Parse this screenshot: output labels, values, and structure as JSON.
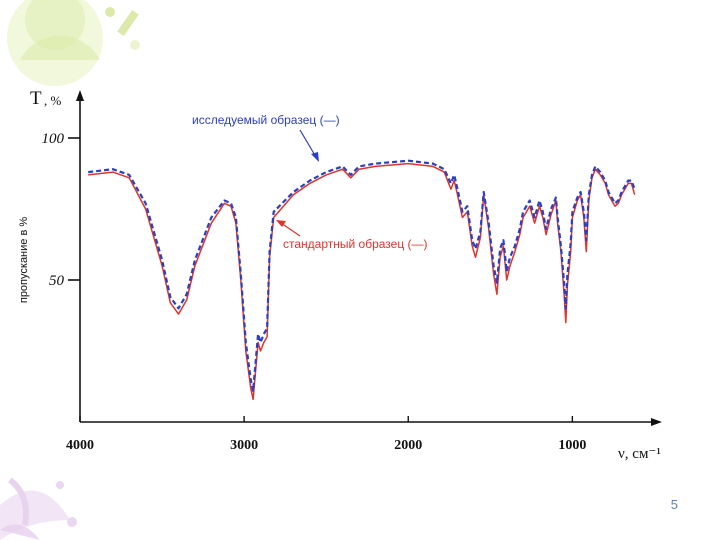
{
  "page_number": "5",
  "chart_data": {
    "type": "line",
    "ylabel_symbol": "T",
    "ylabel_unit": ", %",
    "ylabel_rotated": "пропускание в %",
    "xlabel": "ν, см⁻¹",
    "xlim": [
      4000,
      600
    ],
    "ylim": [
      0,
      110
    ],
    "x_ticks": [
      4000,
      3000,
      2000,
      1000
    ],
    "y_ticks": [
      100,
      50
    ],
    "grid": false,
    "series": [
      {
        "name": "стандартный образец (—)",
        "color": "#e0332b",
        "style": "solid",
        "points": [
          [
            3950,
            87
          ],
          [
            3800,
            88
          ],
          [
            3700,
            86
          ],
          [
            3600,
            75
          ],
          [
            3500,
            55
          ],
          [
            3450,
            42
          ],
          [
            3400,
            38
          ],
          [
            3350,
            43
          ],
          [
            3300,
            55
          ],
          [
            3200,
            70
          ],
          [
            3120,
            77
          ],
          [
            3080,
            76
          ],
          [
            3050,
            70
          ],
          [
            3020,
            50
          ],
          [
            2990,
            25
          ],
          [
            2960,
            12
          ],
          [
            2945,
            8
          ],
          [
            2930,
            18
          ],
          [
            2915,
            28
          ],
          [
            2900,
            25
          ],
          [
            2880,
            28
          ],
          [
            2860,
            30
          ],
          [
            2845,
            58
          ],
          [
            2820,
            72
          ],
          [
            2700,
            80
          ],
          [
            2600,
            84
          ],
          [
            2500,
            87
          ],
          [
            2400,
            89
          ],
          [
            2350,
            86
          ],
          [
            2300,
            89
          ],
          [
            2200,
            90
          ],
          [
            2000,
            91
          ],
          [
            1850,
            90
          ],
          [
            1780,
            88
          ],
          [
            1740,
            82
          ],
          [
            1720,
            85
          ],
          [
            1700,
            80
          ],
          [
            1670,
            72
          ],
          [
            1640,
            74
          ],
          [
            1610,
            62
          ],
          [
            1590,
            58
          ],
          [
            1560,
            65
          ],
          [
            1540,
            80
          ],
          [
            1510,
            68
          ],
          [
            1480,
            52
          ],
          [
            1460,
            45
          ],
          [
            1440,
            58
          ],
          [
            1420,
            62
          ],
          [
            1400,
            50
          ],
          [
            1380,
            55
          ],
          [
            1350,
            60
          ],
          [
            1320,
            66
          ],
          [
            1300,
            72
          ],
          [
            1260,
            76
          ],
          [
            1230,
            70
          ],
          [
            1200,
            76
          ],
          [
            1180,
            72
          ],
          [
            1160,
            66
          ],
          [
            1130,
            73
          ],
          [
            1100,
            78
          ],
          [
            1090,
            70
          ],
          [
            1070,
            60
          ],
          [
            1050,
            45
          ],
          [
            1040,
            35
          ],
          [
            1030,
            48
          ],
          [
            1010,
            60
          ],
          [
            1000,
            72
          ],
          [
            970,
            78
          ],
          [
            950,
            80
          ],
          [
            930,
            72
          ],
          [
            915,
            60
          ],
          [
            900,
            78
          ],
          [
            880,
            86
          ],
          [
            860,
            89
          ],
          [
            830,
            87
          ],
          [
            800,
            84
          ],
          [
            780,
            80
          ],
          [
            760,
            78
          ],
          [
            740,
            76
          ],
          [
            720,
            77
          ],
          [
            700,
            80
          ],
          [
            680,
            82
          ],
          [
            660,
            84
          ],
          [
            640,
            84
          ],
          [
            620,
            80
          ]
        ]
      },
      {
        "name": "исследуемый образец (—)",
        "color": "#2b3fc2",
        "style": "dashed",
        "points": [
          [
            3950,
            88
          ],
          [
            3800,
            89
          ],
          [
            3700,
            87
          ],
          [
            3600,
            77
          ],
          [
            3500,
            57
          ],
          [
            3450,
            44
          ],
          [
            3400,
            40
          ],
          [
            3350,
            45
          ],
          [
            3300,
            57
          ],
          [
            3200,
            72
          ],
          [
            3120,
            78
          ],
          [
            3080,
            77
          ],
          [
            3050,
            72
          ],
          [
            3020,
            52
          ],
          [
            2990,
            28
          ],
          [
            2960,
            15
          ],
          [
            2945,
            11
          ],
          [
            2930,
            21
          ],
          [
            2915,
            31
          ],
          [
            2900,
            28
          ],
          [
            2880,
            31
          ],
          [
            2860,
            33
          ],
          [
            2845,
            60
          ],
          [
            2820,
            74
          ],
          [
            2700,
            81
          ],
          [
            2600,
            85
          ],
          [
            2500,
            88
          ],
          [
            2400,
            90
          ],
          [
            2350,
            87
          ],
          [
            2300,
            90
          ],
          [
            2200,
            91
          ],
          [
            2000,
            92
          ],
          [
            1850,
            91
          ],
          [
            1780,
            89
          ],
          [
            1740,
            84
          ],
          [
            1720,
            87
          ],
          [
            1700,
            82
          ],
          [
            1670,
            74
          ],
          [
            1640,
            76
          ],
          [
            1610,
            64
          ],
          [
            1590,
            61
          ],
          [
            1560,
            67
          ],
          [
            1540,
            81
          ],
          [
            1510,
            70
          ],
          [
            1480,
            55
          ],
          [
            1460,
            49
          ],
          [
            1440,
            61
          ],
          [
            1420,
            64
          ],
          [
            1400,
            53
          ],
          [
            1380,
            58
          ],
          [
            1350,
            62
          ],
          [
            1320,
            68
          ],
          [
            1300,
            74
          ],
          [
            1260,
            78
          ],
          [
            1230,
            72
          ],
          [
            1200,
            78
          ],
          [
            1180,
            74
          ],
          [
            1160,
            68
          ],
          [
            1130,
            75
          ],
          [
            1100,
            79
          ],
          [
            1090,
            72
          ],
          [
            1070,
            62
          ],
          [
            1050,
            49
          ],
          [
            1040,
            40
          ],
          [
            1030,
            52
          ],
          [
            1010,
            63
          ],
          [
            1000,
            74
          ],
          [
            970,
            79
          ],
          [
            950,
            81
          ],
          [
            930,
            74
          ],
          [
            915,
            64
          ],
          [
            900,
            80
          ],
          [
            880,
            87
          ],
          [
            860,
            90
          ],
          [
            830,
            88
          ],
          [
            800,
            85
          ],
          [
            780,
            81
          ],
          [
            760,
            79
          ],
          [
            740,
            77
          ],
          [
            720,
            78
          ],
          [
            700,
            81
          ],
          [
            680,
            83
          ],
          [
            660,
            85
          ],
          [
            640,
            85
          ],
          [
            620,
            82
          ]
        ]
      }
    ],
    "annotations": [
      {
        "text": "исследуемый образец  (—)",
        "color": "#2b3fc2",
        "x": 2550,
        "y": 96
      },
      {
        "text": "стандартный образец (—)",
        "color": "#e0332b",
        "x": 2750,
        "y": 66
      }
    ]
  }
}
